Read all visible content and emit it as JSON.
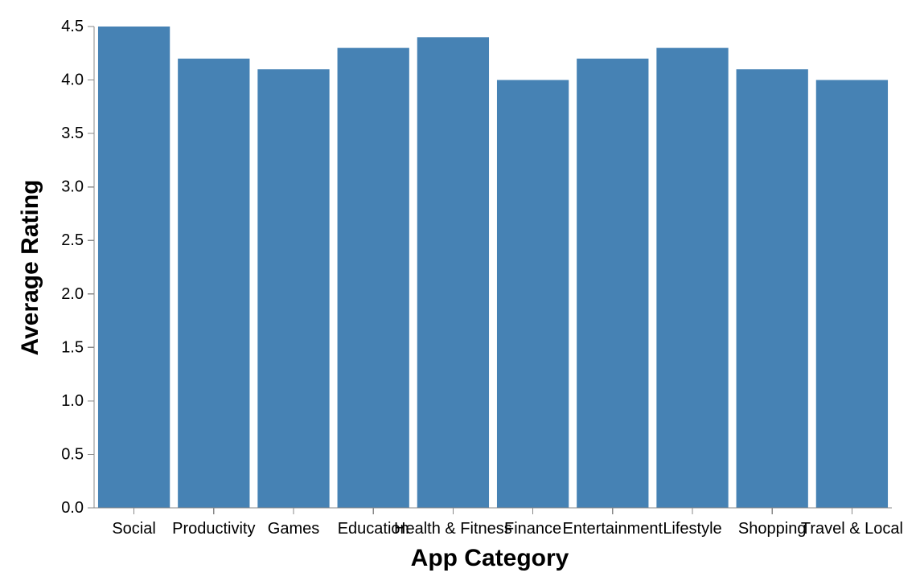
{
  "chart_data": {
    "type": "bar",
    "xlabel": "App Category",
    "ylabel": "Average Rating",
    "categories": [
      "Social",
      "Productivity",
      "Games",
      "Education",
      "Health & Fitness",
      "Finance",
      "Entertainment",
      "Lifestyle",
      "Shopping",
      "Travel & Local"
    ],
    "values": [
      4.5,
      4.2,
      4.1,
      4.3,
      4.4,
      4.0,
      4.2,
      4.3,
      4.1,
      4.0
    ],
    "ylim": [
      0,
      4.5
    ],
    "yticks": [
      "0.0",
      "0.5",
      "1.0",
      "1.5",
      "2.0",
      "2.5",
      "3.0",
      "3.5",
      "4.0",
      "4.5"
    ],
    "grid": false,
    "legend": "none",
    "bar_color": "#4682b4",
    "axis_color": "#888888"
  }
}
